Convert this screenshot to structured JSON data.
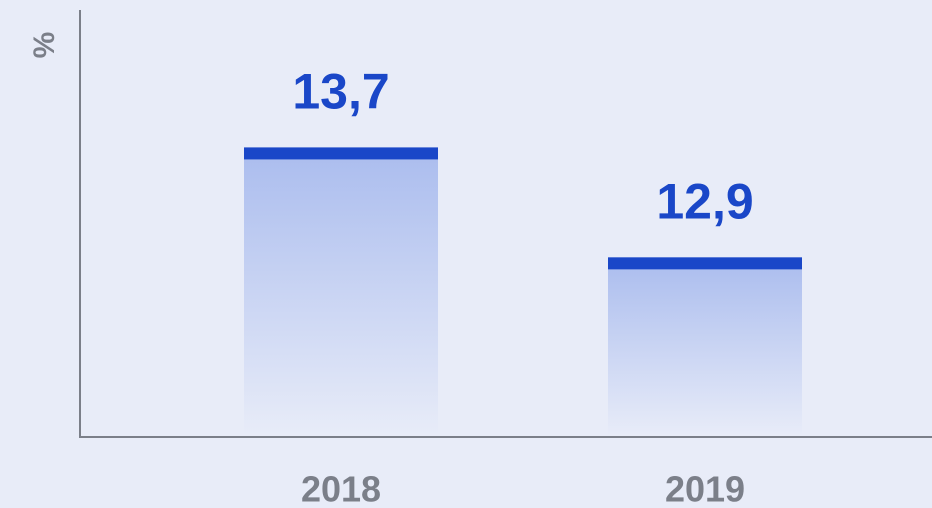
{
  "chart_data": {
    "type": "bar",
    "y_label": "%",
    "categories": [
      "2018",
      "2019"
    ],
    "values": [
      13.7,
      12.9
    ],
    "value_labels": [
      "13,7",
      "12,9"
    ],
    "color": "#1a47c8",
    "ylim": [
      11.6,
      14.7
    ]
  }
}
